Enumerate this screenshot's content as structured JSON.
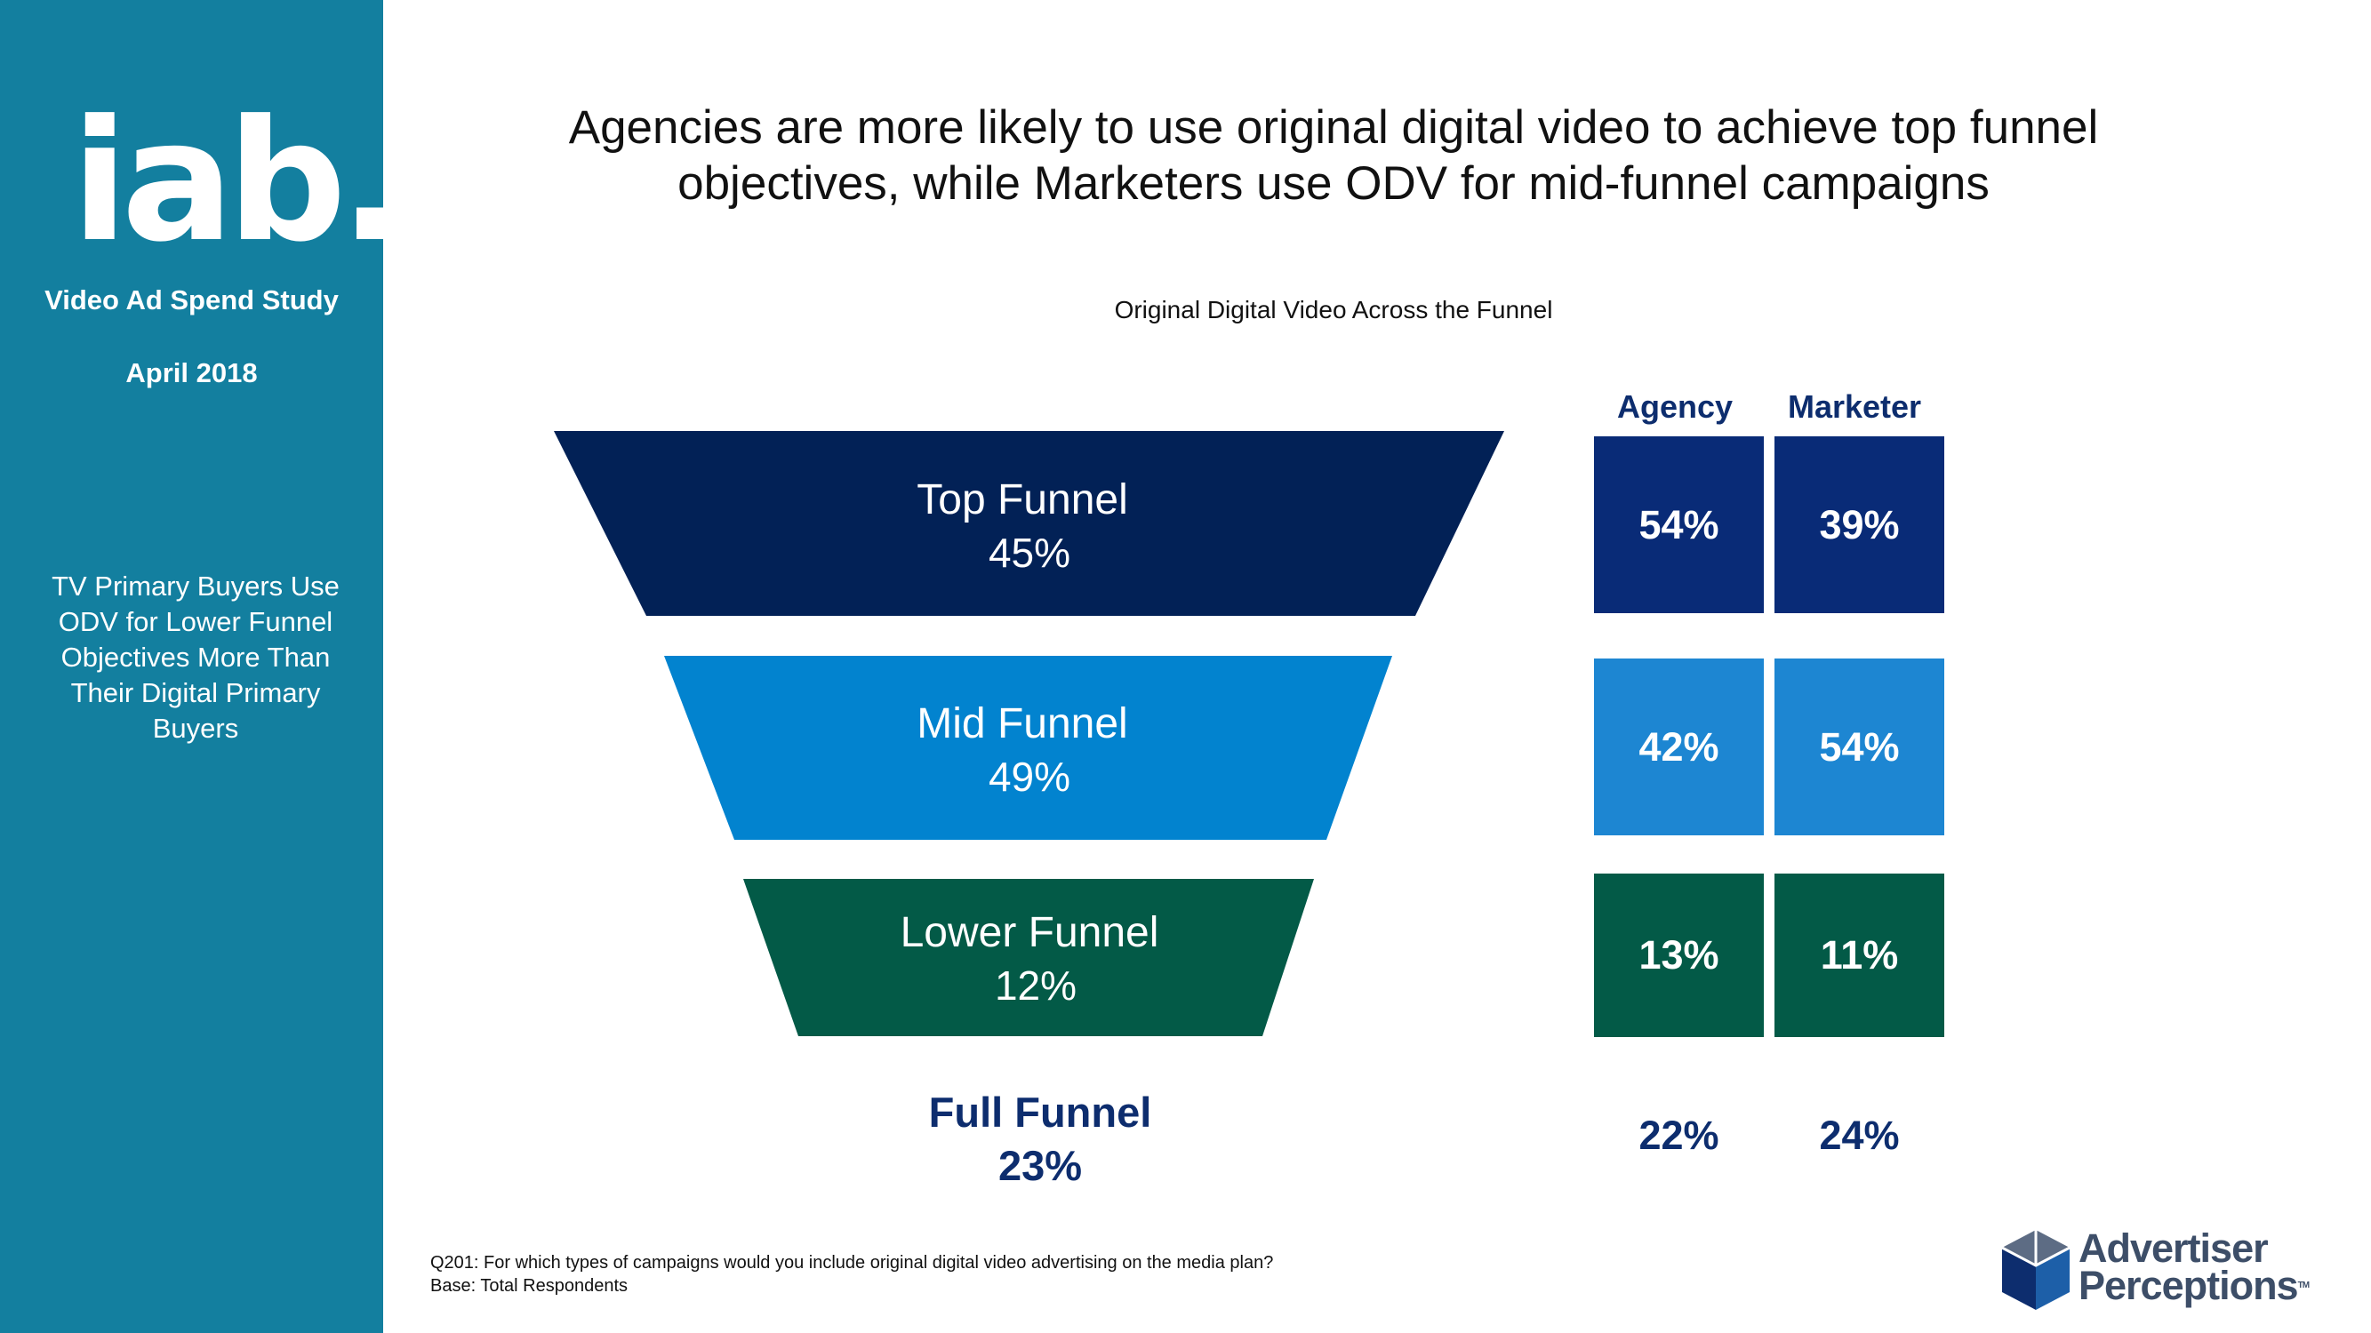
{
  "sidebar": {
    "logo_text": "iab.",
    "study_title": "Video Ad Spend Study",
    "study_date": "April 2018",
    "note_lines": [
      "TV Primary Buyers Use",
      "ODV for Lower Funnel",
      "Objectives More Than",
      "Their Digital Primary",
      "Buyers"
    ]
  },
  "headline": {
    "line1": "Agencies are more likely to use original digital video to achieve top funnel",
    "line2": "objectives, while Marketers use ODV for mid-funnel campaigns"
  },
  "chart_data": {
    "type": "table",
    "title": "Original Digital Video Across the Funnel",
    "columns": [
      "Agency",
      "Marketer"
    ],
    "rows": [
      {
        "label": "Top Funnel",
        "total": "45%",
        "agency": "54%",
        "marketer": "39%",
        "color": "#022156"
      },
      {
        "label": "Mid Funnel",
        "total": "49%",
        "agency": "42%",
        "marketer": "54%",
        "color": "#0283cf"
      },
      {
        "label": "Lower Funnel",
        "total": "12%",
        "agency": "13%",
        "marketer": "11%",
        "color": "#035a47"
      }
    ],
    "full_funnel": {
      "label": "Full Funnel",
      "total": "23%",
      "agency": "22%",
      "marketer": "24%"
    }
  },
  "table_colors": {
    "top": "#092b77",
    "mid": "#1d86d2",
    "lower": "#035a47",
    "header_text": "#0d2d6e"
  },
  "footnote": {
    "q_line": "Q201: For which types of campaigns would you include original digital video advertising on the media plan?",
    "base_line": "Base:  Total Respondents"
  },
  "branding": {
    "ap_line1": "Advertiser",
    "ap_line2": "Perceptions",
    "ap_tm": "TM"
  }
}
